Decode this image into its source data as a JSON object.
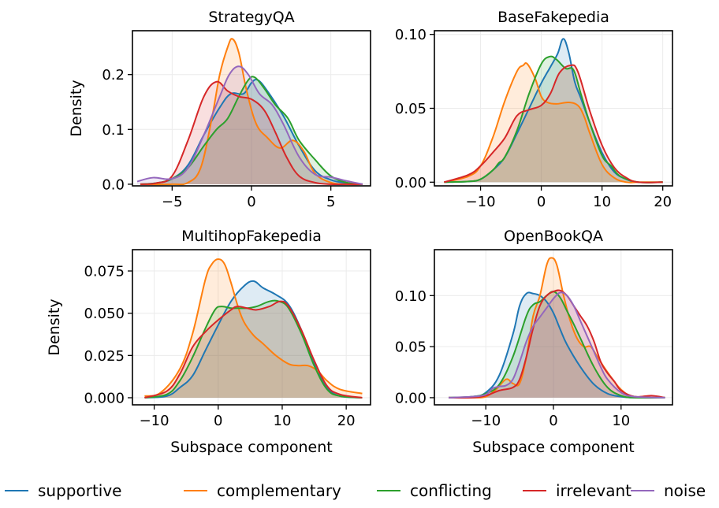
{
  "legend": {
    "entries": [
      {
        "label": "supportive",
        "color": "#1f77b4"
      },
      {
        "label": "complementary",
        "color": "#ff7f0e"
      },
      {
        "label": "conflicting",
        "color": "#2ca02c"
      },
      {
        "label": "irrelevant",
        "color": "#d62728"
      },
      {
        "label": "noise",
        "color": "#9467bd"
      }
    ]
  },
  "chart_data": [
    {
      "type": "area",
      "title": "StrategyQA",
      "xlabel": "",
      "ylabel": "Density",
      "xlim": [
        -7.5,
        7.5
      ],
      "ylim": [
        -0.003,
        0.28
      ],
      "xticks": [
        -5,
        0,
        5
      ],
      "xtick_labels": [
        "−5",
        "0",
        "5"
      ],
      "yticks": [
        0.0,
        0.1,
        0.2
      ],
      "ytick_labels": [
        "0.0",
        "0.1",
        "0.2"
      ],
      "grid": true,
      "series": [
        {
          "name": "supportive",
          "x": [
            -7,
            -6,
            -5,
            -4,
            -3,
            -2,
            -1.3,
            -0.5,
            0,
            0.4,
            1,
            2,
            3,
            4,
            5,
            6,
            7
          ],
          "y": [
            0,
            0.002,
            0.01,
            0.035,
            0.09,
            0.14,
            0.165,
            0.165,
            0.185,
            0.19,
            0.17,
            0.125,
            0.07,
            0.025,
            0.008,
            0.002,
            0
          ]
        },
        {
          "name": "complementary",
          "x": [
            -7,
            -5,
            -4,
            -3.2,
            -2.5,
            -2,
            -1.5,
            -1.2,
            -0.8,
            -0.3,
            0.3,
            1,
            1.8,
            2.6,
            3.3,
            4,
            5,
            6,
            7
          ],
          "y": [
            0,
            0,
            0.003,
            0.03,
            0.12,
            0.2,
            0.25,
            0.265,
            0.24,
            0.17,
            0.11,
            0.085,
            0.066,
            0.08,
            0.06,
            0.02,
            0.003,
            0,
            0
          ]
        },
        {
          "name": "conflicting",
          "x": [
            -7,
            -6,
            -5,
            -4,
            -3,
            -2.2,
            -1.5,
            -0.8,
            -0.2,
            0.2,
            0.8,
            1.5,
            2.3,
            3,
            4,
            5,
            6,
            7
          ],
          "y": [
            0,
            0.002,
            0.01,
            0.03,
            0.07,
            0.1,
            0.12,
            0.16,
            0.19,
            0.195,
            0.175,
            0.145,
            0.12,
            0.08,
            0.045,
            0.015,
            0.003,
            0
          ]
        },
        {
          "name": "irrelevant",
          "x": [
            -7,
            -6,
            -5,
            -4,
            -3,
            -2.2,
            -1.5,
            -0.8,
            0,
            0.8,
            1.5,
            2.2,
            3,
            4,
            5,
            6,
            7
          ],
          "y": [
            0,
            0.002,
            0.015,
            0.08,
            0.16,
            0.187,
            0.17,
            0.16,
            0.155,
            0.135,
            0.095,
            0.05,
            0.015,
            0.003,
            0,
            0,
            0
          ]
        },
        {
          "name": "noise",
          "x": [
            -7.2,
            -6.2,
            -5,
            -4,
            -3,
            -2,
            -1.4,
            -0.8,
            -0.2,
            0.5,
            1.3,
            2,
            3,
            4,
            5,
            6,
            7
          ],
          "y": [
            0.005,
            0.012,
            0.01,
            0.03,
            0.09,
            0.16,
            0.2,
            0.215,
            0.2,
            0.165,
            0.145,
            0.11,
            0.05,
            0.018,
            0.013,
            0.006,
            0
          ]
        }
      ]
    },
    {
      "type": "area",
      "title": "BaseFakepedia",
      "xlabel": "",
      "ylabel": "",
      "xlim": [
        -17.6,
        21.6
      ],
      "ylim": [
        -0.0025,
        0.1025
      ],
      "xticks": [
        -10,
        0,
        10,
        20
      ],
      "xtick_labels": [
        "−10",
        "0",
        "10",
        "20"
      ],
      "yticks": [
        0.0,
        0.05,
        0.1
      ],
      "ytick_labels": [
        "0.00",
        "0.05",
        "0.10"
      ],
      "grid": true,
      "series": [
        {
          "name": "supportive",
          "x": [
            -16,
            -12,
            -10,
            -8,
            -6,
            -4,
            -2,
            0,
            1.5,
            2.7,
            3.6,
            4.5,
            5.5,
            6.5,
            8,
            10,
            12,
            14,
            16,
            20
          ],
          "y": [
            0,
            0.0005,
            0.002,
            0.008,
            0.017,
            0.033,
            0.05,
            0.067,
            0.078,
            0.087,
            0.097,
            0.088,
            0.068,
            0.057,
            0.04,
            0.02,
            0.007,
            0.002,
            0,
            0
          ]
        },
        {
          "name": "complementary",
          "x": [
            -16,
            -12,
            -10,
            -8,
            -6,
            -4,
            -3,
            -2.3,
            -1,
            0,
            1,
            2.5,
            4.5,
            6,
            7,
            8,
            10,
            12,
            14,
            16,
            20
          ],
          "y": [
            0,
            0.004,
            0.011,
            0.03,
            0.055,
            0.075,
            0.079,
            0.08,
            0.07,
            0.058,
            0.054,
            0.053,
            0.054,
            0.052,
            0.045,
            0.033,
            0.012,
            0.003,
            0,
            0,
            0
          ]
        },
        {
          "name": "conflicting",
          "x": [
            -16,
            -12,
            -10,
            -8,
            -7,
            -6,
            -4,
            -2,
            0,
            1.4,
            2.5,
            4,
            5.3,
            6.5,
            8,
            10,
            11.5,
            13,
            16,
            20
          ],
          "y": [
            0,
            0.0005,
            0.002,
            0.008,
            0.013,
            0.017,
            0.035,
            0.06,
            0.08,
            0.085,
            0.083,
            0.077,
            0.076,
            0.06,
            0.04,
            0.018,
            0.011,
            0.004,
            0,
            0
          ]
        },
        {
          "name": "irrelevant",
          "x": [
            -16,
            -12,
            -10,
            -8,
            -6,
            -4,
            -2,
            0,
            1.5,
            3,
            4.8,
            6,
            8,
            10,
            12,
            14,
            16,
            20
          ],
          "y": [
            0,
            0.005,
            0.011,
            0.02,
            0.03,
            0.045,
            0.049,
            0.052,
            0.06,
            0.074,
            0.079,
            0.075,
            0.048,
            0.025,
            0.01,
            0.003,
            0,
            0
          ]
        }
      ]
    },
    {
      "type": "area",
      "title": "MultihopFakepedia",
      "xlabel": "Subspace component",
      "ylabel": "Density",
      "xlim": [
        -13.4,
        23.8
      ],
      "ylim": [
        -0.0042,
        0.0876
      ],
      "xticks": [
        -10,
        0,
        10,
        20
      ],
      "xtick_labels": [
        "−10",
        "0",
        "10",
        "20"
      ],
      "yticks": [
        0.0,
        0.025,
        0.05,
        0.075
      ],
      "ytick_labels": [
        "0.000",
        "0.025",
        "0.050",
        "0.075"
      ],
      "grid": true,
      "series": [
        {
          "name": "supportive",
          "x": [
            -11.5,
            -8,
            -6,
            -4,
            -2,
            0,
            2,
            4,
            5.5,
            7,
            9,
            11,
            13,
            15,
            17,
            19,
            22.5
          ],
          "y": [
            0,
            0.001,
            0.006,
            0.013,
            0.028,
            0.043,
            0.057,
            0.066,
            0.069,
            0.065,
            0.061,
            0.055,
            0.04,
            0.02,
            0.006,
            0.001,
            0
          ]
        },
        {
          "name": "complementary",
          "x": [
            -11.5,
            -9,
            -6,
            -4,
            -2,
            -1,
            0,
            1,
            2,
            3,
            4,
            5.5,
            7,
            9,
            11,
            12.5,
            14,
            15.5,
            17,
            19,
            22.5
          ],
          "y": [
            0.001,
            0.003,
            0.017,
            0.038,
            0.07,
            0.079,
            0.082,
            0.079,
            0.068,
            0.055,
            0.045,
            0.037,
            0.032,
            0.025,
            0.02,
            0.019,
            0.019,
            0.016,
            0.01,
            0.005,
            0.0025
          ]
        },
        {
          "name": "conflicting",
          "x": [
            -11.5,
            -8,
            -6,
            -4,
            -2,
            -0.5,
            0.5,
            2,
            3,
            4.5,
            6,
            8,
            9.5,
            11,
            13,
            15,
            17,
            19,
            22.5
          ],
          "y": [
            0,
            0.002,
            0.01,
            0.024,
            0.041,
            0.052,
            0.054,
            0.053,
            0.053,
            0.053,
            0.054,
            0.057,
            0.057,
            0.053,
            0.038,
            0.019,
            0.005,
            0.001,
            0
          ]
        },
        {
          "name": "irrelevant",
          "x": [
            -11.5,
            -8,
            -6,
            -4,
            -2,
            0,
            2,
            3,
            4.5,
            6,
            8,
            9.7,
            11,
            13,
            15,
            17,
            19,
            22.5
          ],
          "y": [
            0,
            0.004,
            0.014,
            0.03,
            0.039,
            0.046,
            0.052,
            0.054,
            0.053,
            0.052,
            0.054,
            0.057,
            0.054,
            0.04,
            0.022,
            0.007,
            0.002,
            0
          ]
        }
      ]
    },
    {
      "type": "area",
      "title": "OpenBookQA",
      "xlabel": "Subspace component",
      "ylabel": "",
      "xlim": [
        -17.6,
        17.6
      ],
      "ylim": [
        -0.007,
        0.145
      ],
      "xticks": [
        -10,
        0,
        10
      ],
      "xtick_labels": [
        "−10",
        "0",
        "10"
      ],
      "yticks": [
        0.0,
        0.05,
        0.1
      ],
      "ytick_labels": [
        "0.00",
        "0.05",
        "0.10"
      ],
      "grid": true,
      "series": [
        {
          "name": "supportive",
          "x": [
            -15.5,
            -12,
            -10,
            -8,
            -6,
            -5,
            -4,
            -3,
            -2,
            -1,
            0,
            1,
            2,
            4,
            6,
            8,
            10,
            12,
            16.5
          ],
          "y": [
            0,
            0.001,
            0.005,
            0.022,
            0.062,
            0.09,
            0.102,
            0.102,
            0.1,
            0.094,
            0.083,
            0.067,
            0.052,
            0.03,
            0.013,
            0.004,
            0.001,
            0,
            0
          ]
        },
        {
          "name": "complementary",
          "x": [
            -15.5,
            -12,
            -10,
            -8.5,
            -7,
            -6,
            -5,
            -4,
            -3,
            -2,
            -1,
            -0.3,
            0.5,
            1.5,
            2.5,
            3.5,
            4.5,
            5.5,
            6.5,
            8,
            10,
            12,
            16.5
          ],
          "y": [
            0,
            0,
            0.001,
            0.008,
            0.018,
            0.014,
            0.014,
            0.04,
            0.08,
            0.1,
            0.13,
            0.137,
            0.13,
            0.1,
            0.075,
            0.058,
            0.05,
            0.05,
            0.04,
            0.025,
            0.008,
            0.001,
            0
          ]
        },
        {
          "name": "conflicting",
          "x": [
            -15.5,
            -12,
            -10,
            -8,
            -6,
            -4,
            -3,
            -2,
            -1,
            0,
            1,
            2,
            3,
            4,
            6,
            8,
            10,
            12,
            16.5
          ],
          "y": [
            0,
            0.001,
            0.004,
            0.013,
            0.04,
            0.08,
            0.091,
            0.094,
            0.1,
            0.104,
            0.098,
            0.085,
            0.072,
            0.058,
            0.03,
            0.01,
            0.002,
            0,
            0
          ]
        },
        {
          "name": "irrelevant",
          "x": [
            -15.5,
            -12,
            -10,
            -8,
            -6,
            -5,
            -4,
            -3,
            -2,
            -1,
            0,
            1,
            2,
            3,
            4,
            5,
            6,
            7,
            8,
            9,
            10,
            12,
            14.5,
            16.5
          ],
          "y": [
            0,
            0,
            0.002,
            0.007,
            0.01,
            0.018,
            0.04,
            0.068,
            0.09,
            0.1,
            0.104,
            0.105,
            0.1,
            0.09,
            0.08,
            0.07,
            0.055,
            0.035,
            0.024,
            0.016,
            0.007,
            0.001,
            0.002,
            0
          ]
        },
        {
          "name": "noise",
          "x": [
            -15.5,
            -12,
            -10,
            -9,
            -8,
            -7,
            -6,
            -5,
            -4,
            -3,
            -2,
            -1,
            0,
            1,
            2,
            3,
            4,
            5,
            6,
            7,
            8,
            10,
            12,
            16.5
          ],
          "y": [
            0,
            0.001,
            0.003,
            0.009,
            0.011,
            0.012,
            0.018,
            0.035,
            0.055,
            0.07,
            0.079,
            0.088,
            0.097,
            0.103,
            0.1,
            0.09,
            0.075,
            0.06,
            0.045,
            0.03,
            0.018,
            0.005,
            0.001,
            0
          ]
        }
      ]
    }
  ]
}
